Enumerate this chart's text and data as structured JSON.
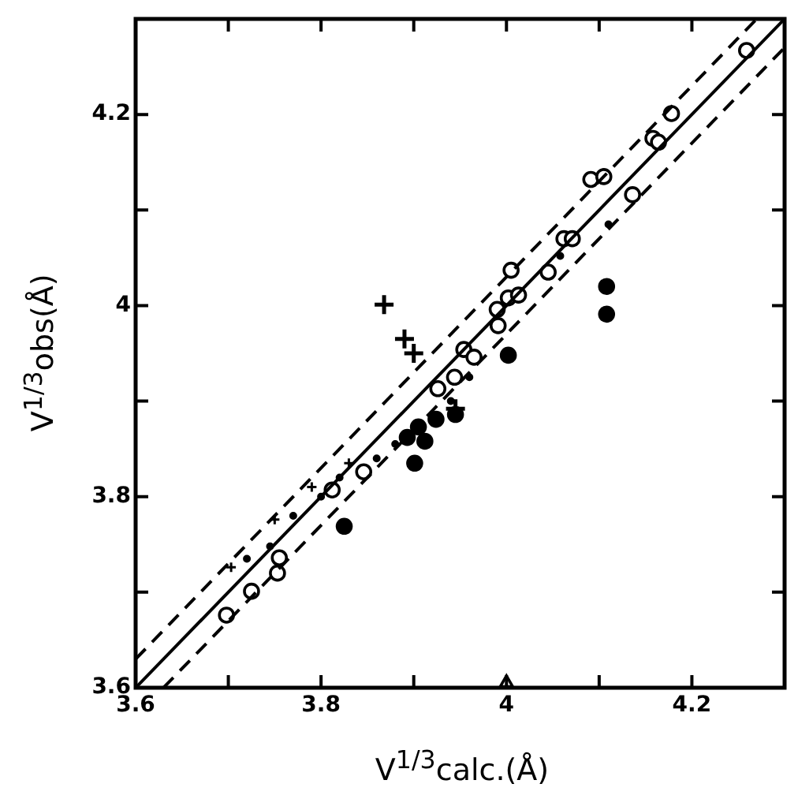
{
  "chart_data": {
    "type": "scatter",
    "xlabel": "V$^{1/3}$calc.(Å)",
    "ylabel": "V$^{1/3}$obs(Å)",
    "xlim": [
      3.6,
      4.3
    ],
    "ylim": [
      3.6,
      4.3
    ],
    "xticks": [
      3.6,
      {
        "value": 3.7,
        "label": null
      },
      3.8,
      {
        "value": 3.9,
        "label": null
      },
      4.0,
      {
        "value": 4.1,
        "label": null
      },
      4.2,
      {
        "value": 4.3,
        "label": null
      }
    ],
    "yticks": [
      3.6,
      {
        "value": 3.7,
        "label": null
      },
      3.8,
      {
        "value": 3.9,
        "label": null
      },
      4.0,
      {
        "value": 4.1,
        "label": null
      },
      4.2,
      {
        "value": 4.3,
        "label": null
      }
    ],
    "grid": false,
    "legend": false,
    "series": [
      {
        "type": "line",
        "color": "#000000",
        "line_style": "solid",
        "marker": "none",
        "x": [
          3.6,
          4.3
        ],
        "values": [
          3.6,
          4.3
        ]
      },
      {
        "type": "line",
        "color": "#000000",
        "line_style": "dashed",
        "marker": "none",
        "x": [
          3.6,
          4.27
        ],
        "values": [
          3.63,
          4.3
        ]
      },
      {
        "type": "line",
        "color": "#000000",
        "line_style": "dashed",
        "marker": "none",
        "x": [
          3.63,
          4.3
        ],
        "values": [
          3.6,
          4.27
        ]
      },
      {
        "color": "#000000",
        "marker": "circle",
        "x": [
          3.698,
          3.725,
          3.753,
          3.755,
          3.812,
          3.846,
          3.926,
          3.944,
          3.954,
          3.965,
          3.991,
          3.99,
          4.002,
          4.013,
          4.005,
          4.045,
          4.062,
          4.071,
          4.091,
          4.105,
          4.136,
          4.158,
          4.164,
          4.178,
          4.259
        ],
        "values": [
          3.676,
          3.701,
          3.72,
          3.736,
          3.807,
          3.826,
          3.913,
          3.925,
          3.954,
          3.946,
          3.979,
          3.996,
          4.008,
          4.011,
          4.037,
          4.035,
          4.07,
          4.07,
          4.132,
          4.135,
          4.116,
          4.175,
          4.171,
          4.201,
          4.267
        ]
      },
      {
        "color": "#000000",
        "marker": "circle",
        "x": [
          3.825,
          3.893,
          3.901,
          3.905,
          3.912,
          3.924,
          3.945,
          4.002,
          4.108,
          4.108
        ],
        "values": [
          3.769,
          3.862,
          3.835,
          3.873,
          3.858,
          3.881,
          3.886,
          3.948,
          4.02,
          3.991
        ]
      },
      {
        "color": "#000000",
        "marker": "cross",
        "x": [
          3.868,
          3.89,
          3.9,
          3.945
        ],
        "values": [
          4.001,
          3.965,
          3.95,
          3.892
        ]
      },
      {
        "color": "#000000",
        "marker": "circle",
        "x": [
          3.72,
          3.745,
          3.77,
          3.8,
          3.82,
          3.86,
          3.88,
          3.94,
          3.96,
          4.058,
          4.11
        ],
        "values": [
          3.735,
          3.748,
          3.78,
          3.8,
          3.82,
          3.84,
          3.855,
          3.9,
          3.925,
          4.052,
          4.085
        ]
      },
      {
        "color": "#000000",
        "marker": "cross",
        "x": [
          3.703,
          3.75,
          3.79,
          3.83
        ],
        "values": [
          3.726,
          3.776,
          3.81,
          3.835
        ]
      },
      {
        "color": "#000000",
        "marker": "triangle",
        "x": [
          4.0
        ],
        "values": [
          3.605
        ]
      }
    ]
  }
}
